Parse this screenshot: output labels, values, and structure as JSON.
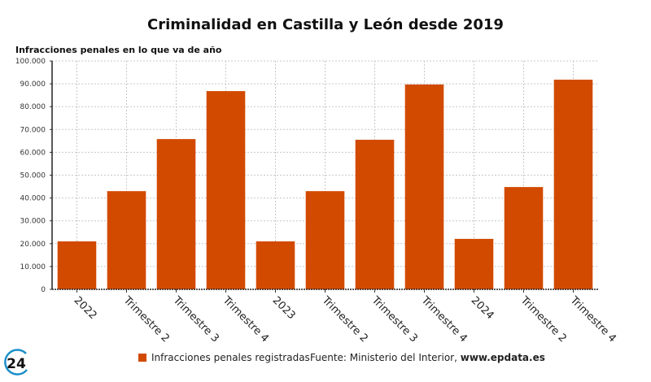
{
  "chart_data": {
    "type": "bar",
    "title": "Criminalidad en Castilla y León desde 2019",
    "ylabel": "Infracciones penales en lo que va de año",
    "xlabel": "",
    "categories": [
      "2022",
      "Trimestre 2",
      "Trimestre 3",
      "Trimestre 4",
      "2023",
      "Trimestre 2",
      "Trimestre 3",
      "Trimestre 4",
      "2024",
      "Trimestre 2",
      "Trimestre 4"
    ],
    "series": [
      {
        "name": "Infracciones penales registradas",
        "color": "#d24a00",
        "values": [
          21000,
          43000,
          65800,
          86800,
          21000,
          43000,
          65500,
          89700,
          22100,
          44800,
          91800
        ]
      }
    ],
    "ylim": [
      0,
      100000
    ],
    "yticks": [
      0,
      10000,
      20000,
      30000,
      40000,
      50000,
      60000,
      70000,
      80000,
      90000,
      100000
    ],
    "ytick_labels": [
      "0",
      "10.000",
      "20.000",
      "30.000",
      "40.000",
      "50.000",
      "60.000",
      "70.000",
      "80.000",
      "90.000",
      "100.000"
    ],
    "grid": true,
    "legend": "bottom-center"
  },
  "footer": {
    "legend_label": "Infracciones penales registradas",
    "source_prefix": "Fuente: Ministerio del Interior, ",
    "source_site": "www.epdata.es"
  },
  "logo": {
    "text": "24",
    "ring_color": "#1a8fc9"
  }
}
